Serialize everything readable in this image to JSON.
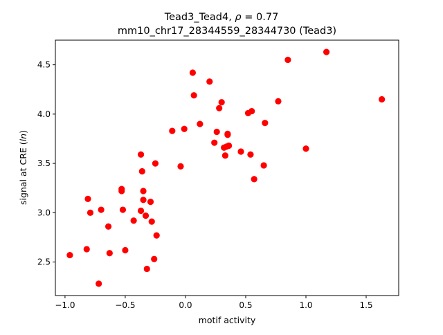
{
  "chart_data": {
    "type": "scatter",
    "title_line1_prefix": "Tead3_Tead4, ",
    "title_line1_rho": "ρ",
    "title_line1_suffix": " = 0.77",
    "title_line2": "mm10_chr17_28344559_28344730 (Tead3)",
    "xlabel": "motif activity",
    "ylabel_prefix": "signal at CRE (",
    "ylabel_italic": "ln",
    "ylabel_suffix": ")",
    "xlim": [
      -1.08,
      1.77
    ],
    "ylim": [
      2.16,
      4.75
    ],
    "xticks": [
      -1.0,
      -0.5,
      0.0,
      0.5,
      1.0,
      1.5
    ],
    "xtick_labels": [
      "−1.0",
      "−0.5",
      "0.0",
      "0.5",
      "1.0",
      "1.5"
    ],
    "yticks": [
      2.5,
      3.0,
      3.5,
      4.0,
      4.5
    ],
    "ytick_labels": [
      "2.5",
      "3.0",
      "3.5",
      "4.0",
      "4.5"
    ],
    "marker_color": "#ff0000",
    "grid": false,
    "legend": "none",
    "series": [
      {
        "points": [
          [
            -0.96,
            2.57
          ],
          [
            -0.82,
            2.63
          ],
          [
            -0.81,
            3.14
          ],
          [
            -0.79,
            3.0
          ],
          [
            -0.72,
            2.28
          ],
          [
            -0.7,
            3.03
          ],
          [
            -0.64,
            2.86
          ],
          [
            -0.63,
            2.59
          ],
          [
            -0.53,
            3.22
          ],
          [
            -0.53,
            3.24
          ],
          [
            -0.52,
            3.03
          ],
          [
            -0.5,
            2.62
          ],
          [
            -0.43,
            2.92
          ],
          [
            -0.37,
            3.59
          ],
          [
            -0.37,
            3.02
          ],
          [
            -0.36,
            3.42
          ],
          [
            -0.35,
            3.13
          ],
          [
            -0.35,
            3.22
          ],
          [
            -0.33,
            2.97
          ],
          [
            -0.32,
            2.43
          ],
          [
            -0.29,
            3.11
          ],
          [
            -0.28,
            2.91
          ],
          [
            -0.26,
            2.53
          ],
          [
            -0.25,
            3.5
          ],
          [
            -0.24,
            2.77
          ],
          [
            -0.11,
            3.83
          ],
          [
            -0.04,
            3.47
          ],
          [
            -0.01,
            3.85
          ],
          [
            0.06,
            4.42
          ],
          [
            0.07,
            4.19
          ],
          [
            0.12,
            3.9
          ],
          [
            0.2,
            4.33
          ],
          [
            0.24,
            3.71
          ],
          [
            0.26,
            3.82
          ],
          [
            0.28,
            4.06
          ],
          [
            0.3,
            4.12
          ],
          [
            0.32,
            3.66
          ],
          [
            0.33,
            3.58
          ],
          [
            0.34,
            3.67
          ],
          [
            0.35,
            3.8
          ],
          [
            0.35,
            3.79
          ],
          [
            0.36,
            3.68
          ],
          [
            0.46,
            3.62
          ],
          [
            0.52,
            4.01
          ],
          [
            0.54,
            3.59
          ],
          [
            0.55,
            4.03
          ],
          [
            0.57,
            3.34
          ],
          [
            0.65,
            3.48
          ],
          [
            0.66,
            3.91
          ],
          [
            0.77,
            4.13
          ],
          [
            0.85,
            4.55
          ],
          [
            1.0,
            3.65
          ],
          [
            1.17,
            4.63
          ],
          [
            1.63,
            4.15
          ]
        ]
      }
    ]
  }
}
